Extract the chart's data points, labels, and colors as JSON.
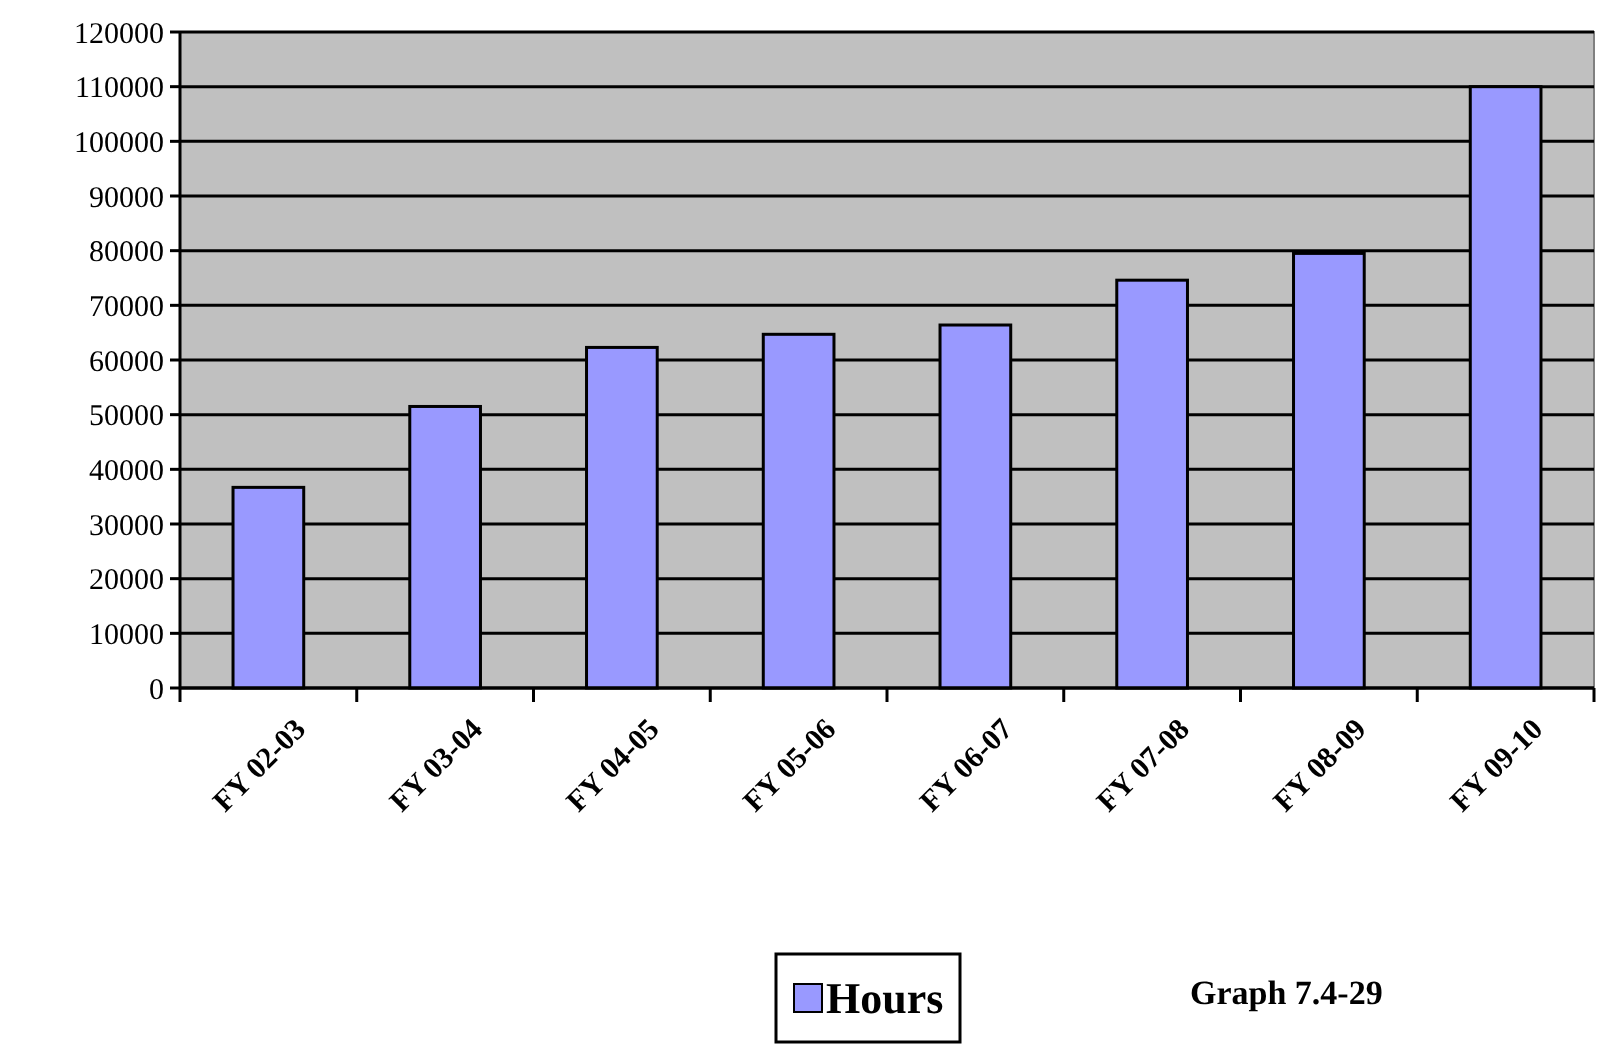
{
  "chart_data": {
    "type": "bar",
    "categories": [
      "FY 02-03",
      "FY 03-04",
      "FY 04-05",
      "FY 05-06",
      "FY 06-07",
      "FY 07-08",
      "FY 08-09",
      "FY 09-10"
    ],
    "series": [
      {
        "name": "Hours",
        "color": "#9999ff",
        "values": [
          36700,
          51500,
          62300,
          64700,
          66400,
          74600,
          79500,
          110000
        ]
      }
    ],
    "ylim": [
      0,
      120000
    ],
    "yticks": [
      0,
      10000,
      20000,
      30000,
      40000,
      50000,
      60000,
      70000,
      80000,
      90000,
      100000,
      110000,
      120000
    ],
    "grid": "y",
    "legend": "bottom",
    "annotations": [
      "Graph 7.4-29"
    ]
  }
}
